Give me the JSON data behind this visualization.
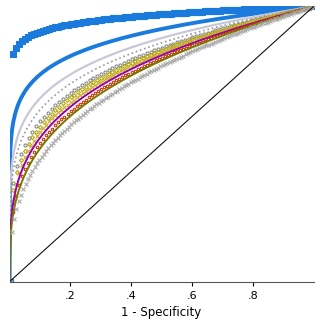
{
  "xlabel": "1 - Specificity",
  "xlim": [
    0,
    1
  ],
  "ylim": [
    0,
    1
  ],
  "xticks": [
    0.2,
    0.4,
    0.6,
    0.8
  ],
  "xtick_labels": [
    ".2",
    ".4",
    ".6",
    ".8"
  ],
  "background_color": "#ffffff",
  "diagonal_color": "#111111",
  "curves": [
    {
      "auc": 0.96,
      "color": "#1b7bdc",
      "ls": "none",
      "lw": 0,
      "marker": "s",
      "ms": 3.8,
      "me": 4,
      "mfc": "#1b7bdc",
      "mec": "#1b7bdc"
    },
    {
      "auc": 0.89,
      "color": "#1b7bdc",
      "ls": "solid",
      "lw": 2.8,
      "marker": null,
      "ms": 0,
      "me": null,
      "mfc": null,
      "mec": null
    },
    {
      "auc": 0.85,
      "color": "#c8c8d8",
      "ls": "solid",
      "lw": 1.6,
      "marker": null,
      "ms": 0,
      "me": null,
      "mfc": null,
      "mec": null
    },
    {
      "auc": 0.83,
      "color": "#999999",
      "ls": "dotted",
      "lw": 1.2,
      "marker": null,
      "ms": 0,
      "me": null,
      "mfc": null,
      "mec": null
    },
    {
      "auc": 0.81,
      "color": "#888888",
      "ls": "none",
      "lw": 0,
      "marker": "o",
      "ms": 2.2,
      "me": 5,
      "mfc": "none",
      "mec": "#888888"
    },
    {
      "auc": 0.8,
      "color": "#b8a800",
      "ls": "none",
      "lw": 0,
      "marker": "D",
      "ms": 2.0,
      "me": 5,
      "mfc": "none",
      "mec": "#b8a800"
    },
    {
      "auc": 0.79,
      "color": "#c8b030",
      "ls": "none",
      "lw": 0,
      "marker": "x",
      "ms": 2.8,
      "me": 4,
      "mfc": "#c8b030",
      "mec": "#c8b030"
    },
    {
      "auc": 0.78,
      "color": "#9900aa",
      "ls": "solid",
      "lw": 1.4,
      "marker": null,
      "ms": 0,
      "me": null,
      "mfc": null,
      "mec": null
    },
    {
      "auc": 0.77,
      "color": "#cc3300",
      "ls": "none",
      "lw": 0,
      "marker": "o",
      "ms": 1.8,
      "me": 4,
      "mfc": "none",
      "mec": "#cc3300"
    },
    {
      "auc": 0.76,
      "color": "#777700",
      "ls": "solid",
      "lw": 1.4,
      "marker": null,
      "ms": 0,
      "me": null,
      "mfc": null,
      "mec": null
    },
    {
      "auc": 0.74,
      "color": "#aaaaaa",
      "ls": "none",
      "lw": 0,
      "marker": "x",
      "ms": 2.2,
      "me": 3,
      "mfc": "#aaaaaa",
      "mec": "#aaaaaa"
    }
  ]
}
